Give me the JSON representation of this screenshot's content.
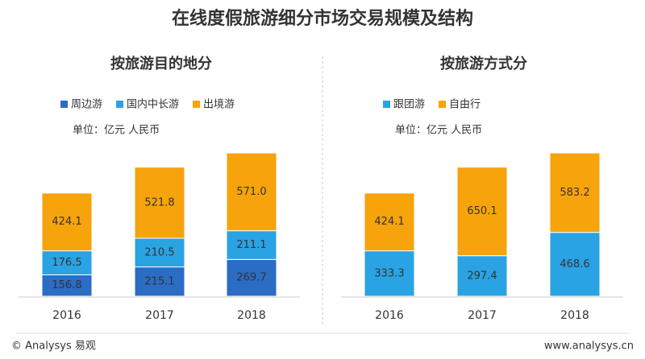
{
  "title": "在线度假旅游细分市场交易规模及结构",
  "chart_data": [
    {
      "type": "stacked_bar",
      "title": "按旅游目的地分",
      "unit": "单位：亿元 人民币",
      "categories": [
        "2016",
        "2017",
        "2018"
      ],
      "series": [
        {
          "name": "周边游",
          "color": "#2b6cc4",
          "values": [
            156.8,
            215.1,
            269.7
          ]
        },
        {
          "name": "国内中长游",
          "color": "#29a3e3",
          "values": [
            176.5,
            210.5,
            211.1
          ]
        },
        {
          "name": "出境游",
          "color": "#f7a30c",
          "values": [
            424.1,
            521.8,
            571.0
          ],
          "value_labels": [
            "424.1",
            "521.8",
            "571.0"
          ]
        }
      ]
    },
    {
      "type": "stacked_bar",
      "title": "按旅游方式分",
      "unit": "单位：亿元 人民币",
      "categories": [
        "2016",
        "2017",
        "2018"
      ],
      "series": [
        {
          "name": "跟团游",
          "color": "#29a3e3",
          "values": [
            333.3,
            297.4,
            468.6
          ]
        },
        {
          "name": "自由行",
          "color": "#f7a30c",
          "values": [
            424.1,
            650.1,
            583.2
          ]
        }
      ]
    }
  ],
  "footer": {
    "left": "© Analysys 易观",
    "right": "www.analysys.cn"
  }
}
